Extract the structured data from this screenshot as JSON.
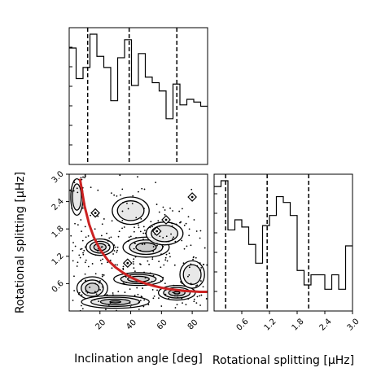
{
  "chart_data": {
    "type": "corner",
    "axis_labels": {
      "inclination": "Inclination angle [deg]",
      "splitting": "Rotational splitting [μHz]"
    },
    "inclination_hist": {
      "type": "histogram",
      "xlim": [
        0,
        90
      ],
      "bin_edges": [
        0,
        4.5,
        9,
        13.5,
        18,
        22.5,
        27,
        31.5,
        36,
        40.5,
        45,
        49.5,
        54,
        58.5,
        63,
        67.5,
        72,
        76.5,
        81,
        85.5,
        90
      ],
      "counts": [
        84,
        62,
        70,
        94,
        78,
        70,
        46,
        77,
        90,
        57,
        80,
        63,
        59,
        53,
        33,
        58,
        43,
        47,
        45,
        42
      ],
      "quantiles": [
        12,
        39,
        70
      ],
      "ticks": [
        20,
        40,
        60,
        80
      ],
      "tick_labels": [
        "20",
        "40",
        "60",
        "80"
      ]
    },
    "splitting_hist": {
      "type": "histogram",
      "xlim": [
        0,
        3
      ],
      "bin_edges": [
        0,
        0.15,
        0.3,
        0.45,
        0.6,
        0.75,
        0.9,
        1.05,
        1.2,
        1.35,
        1.5,
        1.65,
        1.8,
        1.95,
        2.1,
        2.25,
        2.4,
        2.55,
        2.7,
        2.85,
        3.0
      ],
      "counts": [
        86,
        90,
        56,
        63,
        58,
        46,
        33,
        59,
        66,
        79,
        75,
        66,
        28,
        18,
        25,
        25,
        15,
        25,
        15,
        45
      ],
      "quantiles": [
        0.25,
        1.15,
        2.05
      ],
      "ticks": [
        0.6,
        1.2,
        1.8,
        2.4,
        3.0
      ],
      "tick_labels": [
        "0.6",
        "1.2",
        "1.8",
        "2.4",
        "3.0"
      ]
    },
    "joint": {
      "type": "contour_scatter",
      "xlim": [
        0,
        90
      ],
      "ylim": [
        0,
        3.0
      ],
      "yticks": [
        0.6,
        1.2,
        1.8,
        2.4,
        3.0
      ],
      "ytick_labels": [
        "0.6",
        "1.2",
        "1.8",
        "2.4",
        "3.0"
      ],
      "relation_curve": {
        "color": "#cc2222",
        "x": [
          7,
          10,
          13,
          16,
          20,
          25,
          30,
          35,
          40,
          45,
          50,
          55,
          60,
          65,
          70,
          75,
          80,
          85,
          90
        ],
        "y": [
          2.9,
          2.3,
          1.9,
          1.62,
          1.35,
          1.12,
          0.96,
          0.84,
          0.74,
          0.66,
          0.6,
          0.55,
          0.51,
          0.48,
          0.46,
          0.44,
          0.43,
          0.42,
          0.42
        ]
      },
      "blobs": [
        {
          "x": 20,
          "y": 1.4,
          "sx": 9,
          "sy": 0.18,
          "level": 2
        },
        {
          "x": 50,
          "y": 1.4,
          "sx": 15,
          "sy": 0.22,
          "level": 2
        },
        {
          "x": 45,
          "y": 0.7,
          "sx": 16,
          "sy": 0.14,
          "level": 2
        },
        {
          "x": 70,
          "y": 0.4,
          "sx": 12,
          "sy": 0.16,
          "level": 3
        },
        {
          "x": 15,
          "y": 0.5,
          "sx": 10,
          "sy": 0.25,
          "level": 2
        },
        {
          "x": 30,
          "y": 0.2,
          "sx": 22,
          "sy": 0.14,
          "level": 3
        },
        {
          "x": 80,
          "y": 0.8,
          "sx": 8,
          "sy": 0.3,
          "level": 1
        },
        {
          "x": 5,
          "y": 2.5,
          "sx": 4,
          "sy": 0.4,
          "level": 1
        },
        {
          "x": 40,
          "y": 2.2,
          "sx": 12,
          "sy": 0.3,
          "level": 1
        },
        {
          "x": 62,
          "y": 1.7,
          "sx": 12,
          "sy": 0.25,
          "level": 1
        }
      ]
    }
  }
}
